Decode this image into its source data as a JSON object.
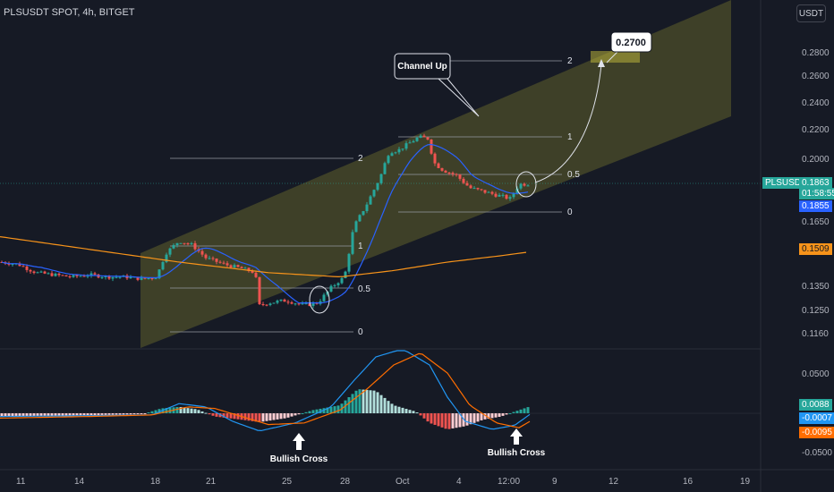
{
  "header": {
    "symbol": "PLSUSDT SPOT, 4h, BITGET",
    "currency": "USDT"
  },
  "colors": {
    "up": "#26a69a",
    "down": "#ef5350",
    "bg": "#161a25",
    "channel": "#8a8a2e",
    "ma_fast": "#2962ff",
    "ma_slow": "#f7931a",
    "grid": "#2a2e39"
  },
  "badges": {
    "symbol_label": "PLSUSDT",
    "price": "0.1863",
    "countdown": "01:58:55",
    "ma_fast": "0.1855",
    "ma_slow": "0.1509",
    "macd_hist": "0.0088",
    "macd_line": "-0.0007",
    "macd_signal": "-0.0095"
  },
  "annotations": {
    "channel_label": "Channel Up",
    "target": "0.2700",
    "cross1": "Bullish Cross",
    "cross2": "Bullish Cross"
  },
  "fib_levels": {
    "first": [
      "1",
      "0.5",
      "0",
      "2"
    ],
    "second": [
      "1",
      "0.5",
      "0",
      "2"
    ]
  },
  "chart_data": [
    {
      "type": "candlestick",
      "title": "PLSUSDT SPOT, 4h, BITGET",
      "x_tick_labels": [
        "11",
        "14",
        "18",
        "21",
        "25",
        "28",
        "Oct",
        "4",
        "12:00",
        "9",
        "12",
        "16",
        "19"
      ],
      "y_tick_labels": [
        "0.2800",
        "0.2600",
        "0.2400",
        "0.2200",
        "0.2000",
        "0.1650",
        "0.1350",
        "0.1250",
        "0.1160"
      ],
      "ylim": [
        0.11,
        0.295
      ],
      "approx_close_path": [
        [
          0,
          0.146
        ],
        [
          20,
          0.145
        ],
        [
          40,
          0.141
        ],
        [
          60,
          0.14
        ],
        [
          80,
          0.139
        ],
        [
          100,
          0.14
        ],
        [
          120,
          0.139
        ],
        [
          140,
          0.139
        ],
        [
          160,
          0.138
        ],
        [
          175,
          0.139
        ],
        [
          185,
          0.15
        ],
        [
          200,
          0.156
        ],
        [
          215,
          0.154
        ],
        [
          230,
          0.148
        ],
        [
          250,
          0.145
        ],
        [
          270,
          0.143
        ],
        [
          285,
          0.141
        ],
        [
          290,
          0.127
        ],
        [
          300,
          0.128
        ],
        [
          320,
          0.129
        ],
        [
          340,
          0.127
        ],
        [
          355,
          0.128
        ],
        [
          370,
          0.134
        ],
        [
          385,
          0.139
        ],
        [
          395,
          0.162
        ],
        [
          410,
          0.175
        ],
        [
          425,
          0.19
        ],
        [
          435,
          0.205
        ],
        [
          445,
          0.206
        ],
        [
          455,
          0.21
        ],
        [
          468,
          0.215
        ],
        [
          478,
          0.214
        ],
        [
          485,
          0.198
        ],
        [
          495,
          0.194
        ],
        [
          510,
          0.191
        ],
        [
          525,
          0.184
        ],
        [
          540,
          0.182
        ],
        [
          555,
          0.18
        ],
        [
          570,
          0.178
        ],
        [
          580,
          0.186
        ],
        [
          593,
          0.1863
        ]
      ],
      "series": [
        {
          "name": "",
          "color": "#2962ff",
          "values_desc": "fast moving average"
        },
        {
          "name": "",
          "color": "#f7931a",
          "values_desc": "slow moving average"
        }
      ],
      "grid": true
    },
    {
      "type": "line",
      "title": "",
      "y_tick_labels": [
        "0.0500",
        "-0.0500"
      ],
      "ylim": [
        -0.06,
        0.07
      ],
      "series": [
        {
          "name": "",
          "color": "#2196f3"
        },
        {
          "name": "",
          "color": "#ff6d00"
        }
      ],
      "histogram_path": [
        [
          0,
          -0.004
        ],
        [
          60,
          -0.003
        ],
        [
          120,
          -0.002
        ],
        [
          160,
          -0.001
        ],
        [
          180,
          0.006
        ],
        [
          200,
          0.008
        ],
        [
          220,
          0.005
        ],
        [
          240,
          -0.004
        ],
        [
          270,
          -0.008
        ],
        [
          290,
          -0.011
        ],
        [
          320,
          -0.006
        ],
        [
          350,
          0.004
        ],
        [
          380,
          0.01
        ],
        [
          400,
          0.03
        ],
        [
          420,
          0.028
        ],
        [
          440,
          0.01
        ],
        [
          465,
          0.002
        ],
        [
          480,
          -0.012
        ],
        [
          500,
          -0.02
        ],
        [
          520,
          -0.016
        ],
        [
          540,
          -0.008
        ],
        [
          560,
          -0.004
        ],
        [
          575,
          0.002
        ],
        [
          593,
          0.0088
        ]
      ],
      "macd_path": [
        [
          0,
          -0.004
        ],
        [
          100,
          -0.003
        ],
        [
          170,
          -0.002
        ],
        [
          200,
          0.012
        ],
        [
          230,
          0.008
        ],
        [
          260,
          -0.01
        ],
        [
          290,
          -0.022
        ],
        [
          330,
          -0.012
        ],
        [
          370,
          0.008
        ],
        [
          395,
          0.04
        ],
        [
          420,
          0.07
        ],
        [
          450,
          0.08
        ],
        [
          480,
          0.06
        ],
        [
          500,
          0.02
        ],
        [
          520,
          -0.01
        ],
        [
          550,
          -0.02
        ],
        [
          575,
          -0.015
        ],
        [
          593,
          -0.0007
        ]
      ],
      "signal_path": [
        [
          0,
          -0.006
        ],
        [
          100,
          -0.004
        ],
        [
          170,
          -0.002
        ],
        [
          210,
          0.008
        ],
        [
          240,
          0.006
        ],
        [
          270,
          -0.004
        ],
        [
          300,
          -0.014
        ],
        [
          340,
          -0.012
        ],
        [
          380,
          0.004
        ],
        [
          410,
          0.03
        ],
        [
          440,
          0.06
        ],
        [
          470,
          0.075
        ],
        [
          500,
          0.05
        ],
        [
          525,
          0.01
        ],
        [
          555,
          -0.012
        ],
        [
          580,
          -0.018
        ],
        [
          593,
          -0.0095
        ]
      ]
    }
  ]
}
